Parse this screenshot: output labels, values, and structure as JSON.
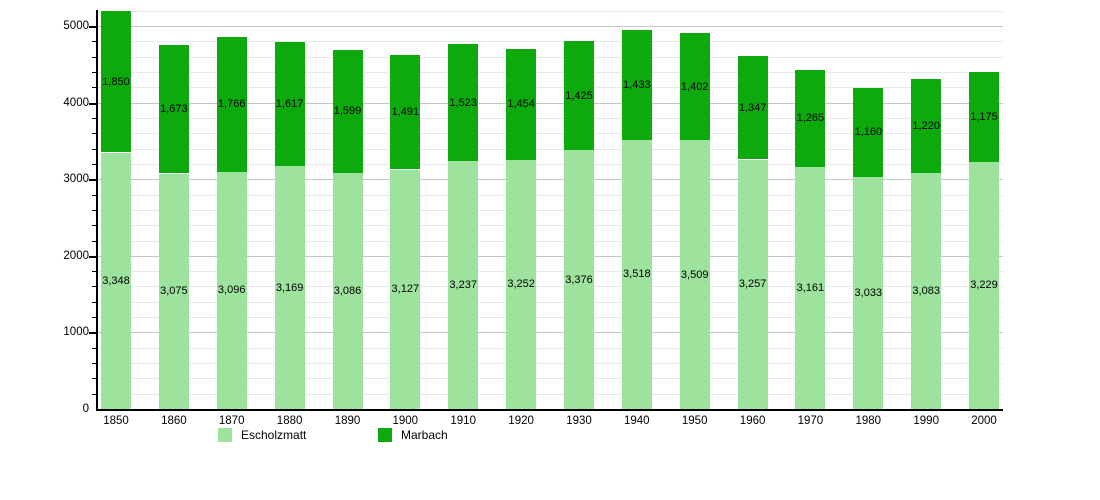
{
  "chart_data": {
    "type": "bar",
    "stacked": true,
    "title": "",
    "xlabel": "",
    "ylabel": "",
    "categories": [
      "1850",
      "1860",
      "1870",
      "1880",
      "1890",
      "1900",
      "1910",
      "1920",
      "1930",
      "1940",
      "1950",
      "1960",
      "1970",
      "1980",
      "1990",
      "2000"
    ],
    "series": [
      {
        "name": "Escholzmatt",
        "color": "#9de29d",
        "values": [
          3348,
          3075,
          3096,
          3169,
          3086,
          3127,
          3237,
          3252,
          3376,
          3518,
          3509,
          3257,
          3161,
          3033,
          3083,
          3229
        ]
      },
      {
        "name": "Marbach",
        "color": "#0daa0d",
        "values": [
          1850,
          1673,
          1766,
          1617,
          1599,
          1491,
          1523,
          1454,
          1425,
          1433,
          1402,
          1347,
          1265,
          1160,
          1220,
          1175
        ]
      }
    ],
    "ylim": [
      0,
      5200
    ],
    "yticks": [
      0,
      1000,
      2000,
      3000,
      4000,
      5000
    ],
    "minor_grid_step": 200,
    "grid": true,
    "bar_value_labels": true,
    "legend_position": "bottom",
    "axis_color": "#000000",
    "major_grid_color": "#c6c6c6",
    "minor_grid_color": "#e9e9e9"
  }
}
